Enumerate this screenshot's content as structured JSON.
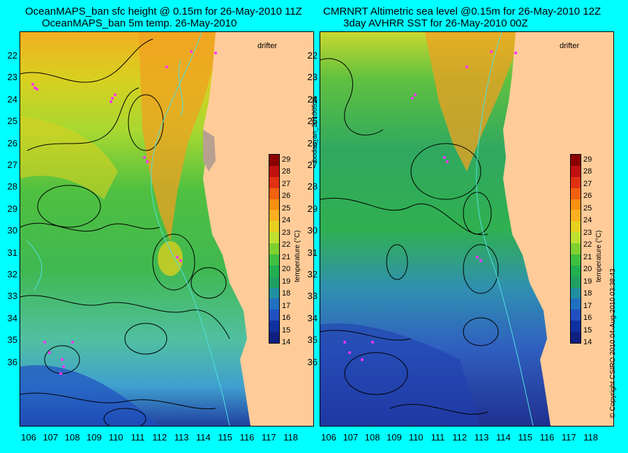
{
  "left": {
    "title_line1": "OceanMAPS_ban sfc height @ 0.15m for 26-May-2010 11Z",
    "title_line2": "OceanMAPS_ban 5m temp. 26-May-2010",
    "drifter_label": "drifter"
  },
  "right": {
    "title_line1": "CMRNRT Altimetric sea level  @0.15m  for 26-May-2010 12Z",
    "title_line2": "3day AVHRR SST for 26-May-2010 00Z",
    "drifter_label": "drifter"
  },
  "lat_ticks": [
    "22",
    "23",
    "24",
    "25",
    "26",
    "27",
    "28",
    "29",
    "30",
    "31",
    "32",
    "33",
    "34",
    "35",
    "36"
  ],
  "lon_ticks": [
    "106",
    "107",
    "108",
    "109",
    "110",
    "111",
    "112",
    "113",
    "114",
    "115",
    "116",
    "117",
    "118"
  ],
  "colorbar": {
    "values": [
      "29",
      "28",
      "27",
      "26",
      "25",
      "24",
      "23",
      "22",
      "21",
      "20",
      "19",
      "18",
      "17",
      "16",
      "15",
      "14"
    ],
    "label": "temperature (°C)",
    "colors": [
      "#8b0000",
      "#c01010",
      "#e03010",
      "#f06010",
      "#f89010",
      "#fbb020",
      "#e8d020",
      "#c0e030",
      "#80d030",
      "#40c040",
      "#20b050",
      "#20a060",
      "#2090a0",
      "#2070c0",
      "#2050c0",
      "#1030a0",
      "#102080"
    ]
  },
  "side_label": "bodas_an_20100526",
  "copyright": "© Copyright CSIRO 2010    04-Aug-2010 03:38:43",
  "colors": {
    "background": "#00ffff",
    "land": "#ffcc99",
    "drifter": "#ff33ff"
  }
}
